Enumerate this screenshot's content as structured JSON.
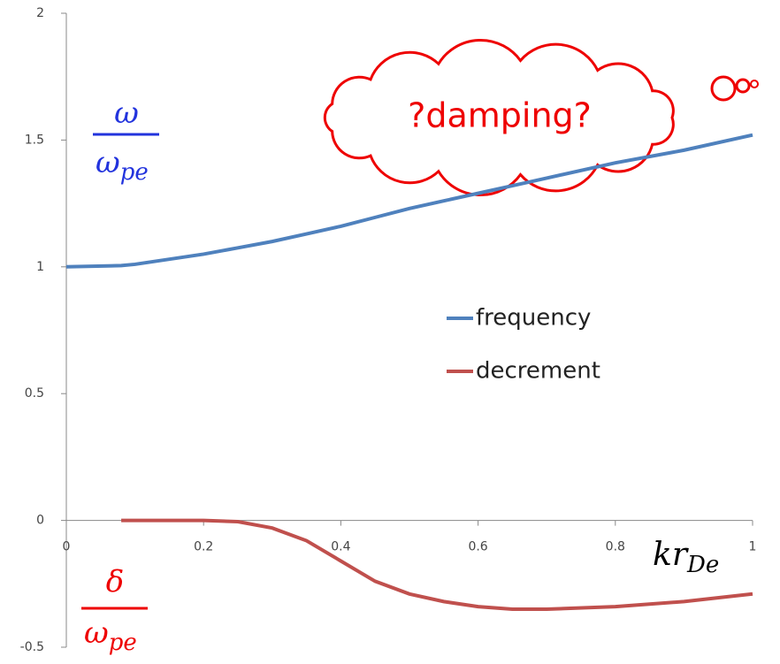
{
  "chart_data": {
    "type": "line",
    "x": [
      0,
      0.08,
      0.1,
      0.2,
      0.25,
      0.3,
      0.35,
      0.4,
      0.45,
      0.5,
      0.55,
      0.6,
      0.65,
      0.7,
      0.8,
      0.9,
      1
    ],
    "series": [
      {
        "name": "frequency",
        "color": "#4f81bd",
        "values": [
          1.0,
          1.005,
          1.01,
          1.05,
          1.075,
          1.1,
          1.13,
          1.16,
          1.195,
          1.23,
          1.26,
          1.29,
          1.32,
          1.35,
          1.41,
          1.46,
          1.52
        ]
      },
      {
        "name": "decrement",
        "color": "#c0504d",
        "values": [
          null,
          0,
          0,
          0,
          -0.005,
          -0.03,
          -0.08,
          -0.16,
          -0.24,
          -0.29,
          -0.32,
          -0.34,
          -0.35,
          -0.35,
          -0.34,
          -0.32,
          -0.29
        ]
      }
    ],
    "xlim": [
      0,
      1
    ],
    "xticks": [
      0,
      0.2,
      0.4,
      0.6,
      0.8,
      1
    ],
    "ylim": [
      -0.5,
      2
    ],
    "yticks": [
      -0.5,
      0,
      0.5,
      1,
      1.5,
      2
    ],
    "legend": "right",
    "y_label_top": {
      "numerator": "ω",
      "denominator": "ω",
      "denominator_sub": "pe"
    },
    "y_label_bottom": {
      "numerator": "δ",
      "denominator": "ω",
      "denominator_sub": "pe"
    },
    "x_label": {
      "main": "kr",
      "sub": "De"
    },
    "annotation": "?damping?"
  }
}
